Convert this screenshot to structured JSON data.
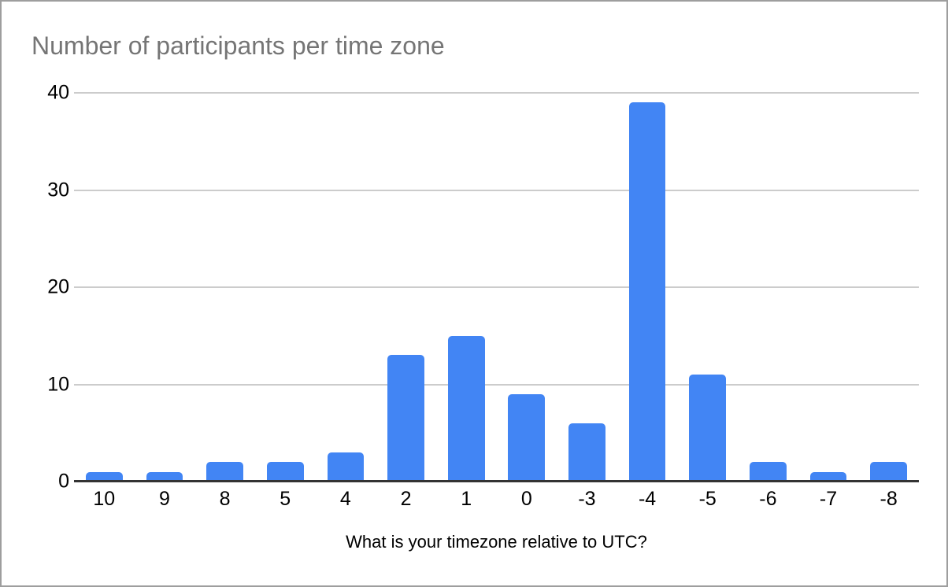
{
  "title": "Number of participants per time zone",
  "chart_data": {
    "type": "bar",
    "title": "Number of participants per time zone",
    "categories": [
      "10",
      "9",
      "8",
      "5",
      "4",
      "2",
      "1",
      "0",
      "-3",
      "-4",
      "-5",
      "-6",
      "-7",
      "-8"
    ],
    "values": [
      1,
      1,
      2,
      2,
      3,
      13,
      15,
      9,
      6,
      39,
      11,
      2,
      1,
      2
    ],
    "xlabel": "What is your timezone relative to UTC?",
    "ylabel": "",
    "ylim": [
      0,
      40
    ],
    "yticks": [
      0,
      10,
      20,
      30,
      40
    ],
    "grid": true,
    "legend": "none",
    "bar_color": "#4285f4"
  },
  "colors": {
    "bar": "#4285f4",
    "title_text": "#757575",
    "axis_text": "#000000",
    "gridline": "#cccccc",
    "axis_line": "#333333",
    "frame_border": "#9e9e9e",
    "background": "#ffffff"
  }
}
